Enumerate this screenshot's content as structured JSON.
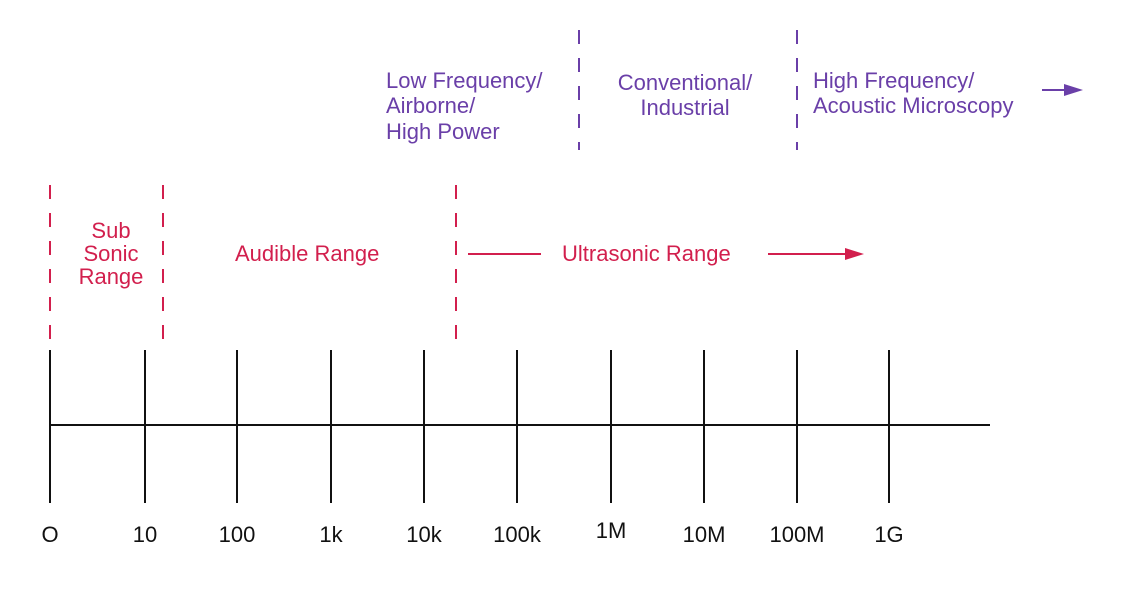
{
  "axis": {
    "ticks": [
      "O",
      "10",
      "100",
      "1k",
      "10k",
      "100k",
      "1M",
      "10M",
      "100M",
      "1G"
    ]
  },
  "ranges": {
    "sub_sonic": [
      "Sub",
      "Sonic",
      "Range"
    ],
    "audible": "Audible Range",
    "ultrasonic": "Ultrasonic Range"
  },
  "applications": {
    "low_frequency": [
      "Low Frequency/",
      "Airborne/",
      "High Power"
    ],
    "conventional": [
      "Conventional/",
      "Industrial"
    ],
    "high_frequency": [
      "High Frequency/",
      "Acoustic Microscopy"
    ]
  },
  "colors": {
    "range_color": "#d21f4d",
    "application_color": "#6a3fa8",
    "axis_color": "#111111"
  }
}
